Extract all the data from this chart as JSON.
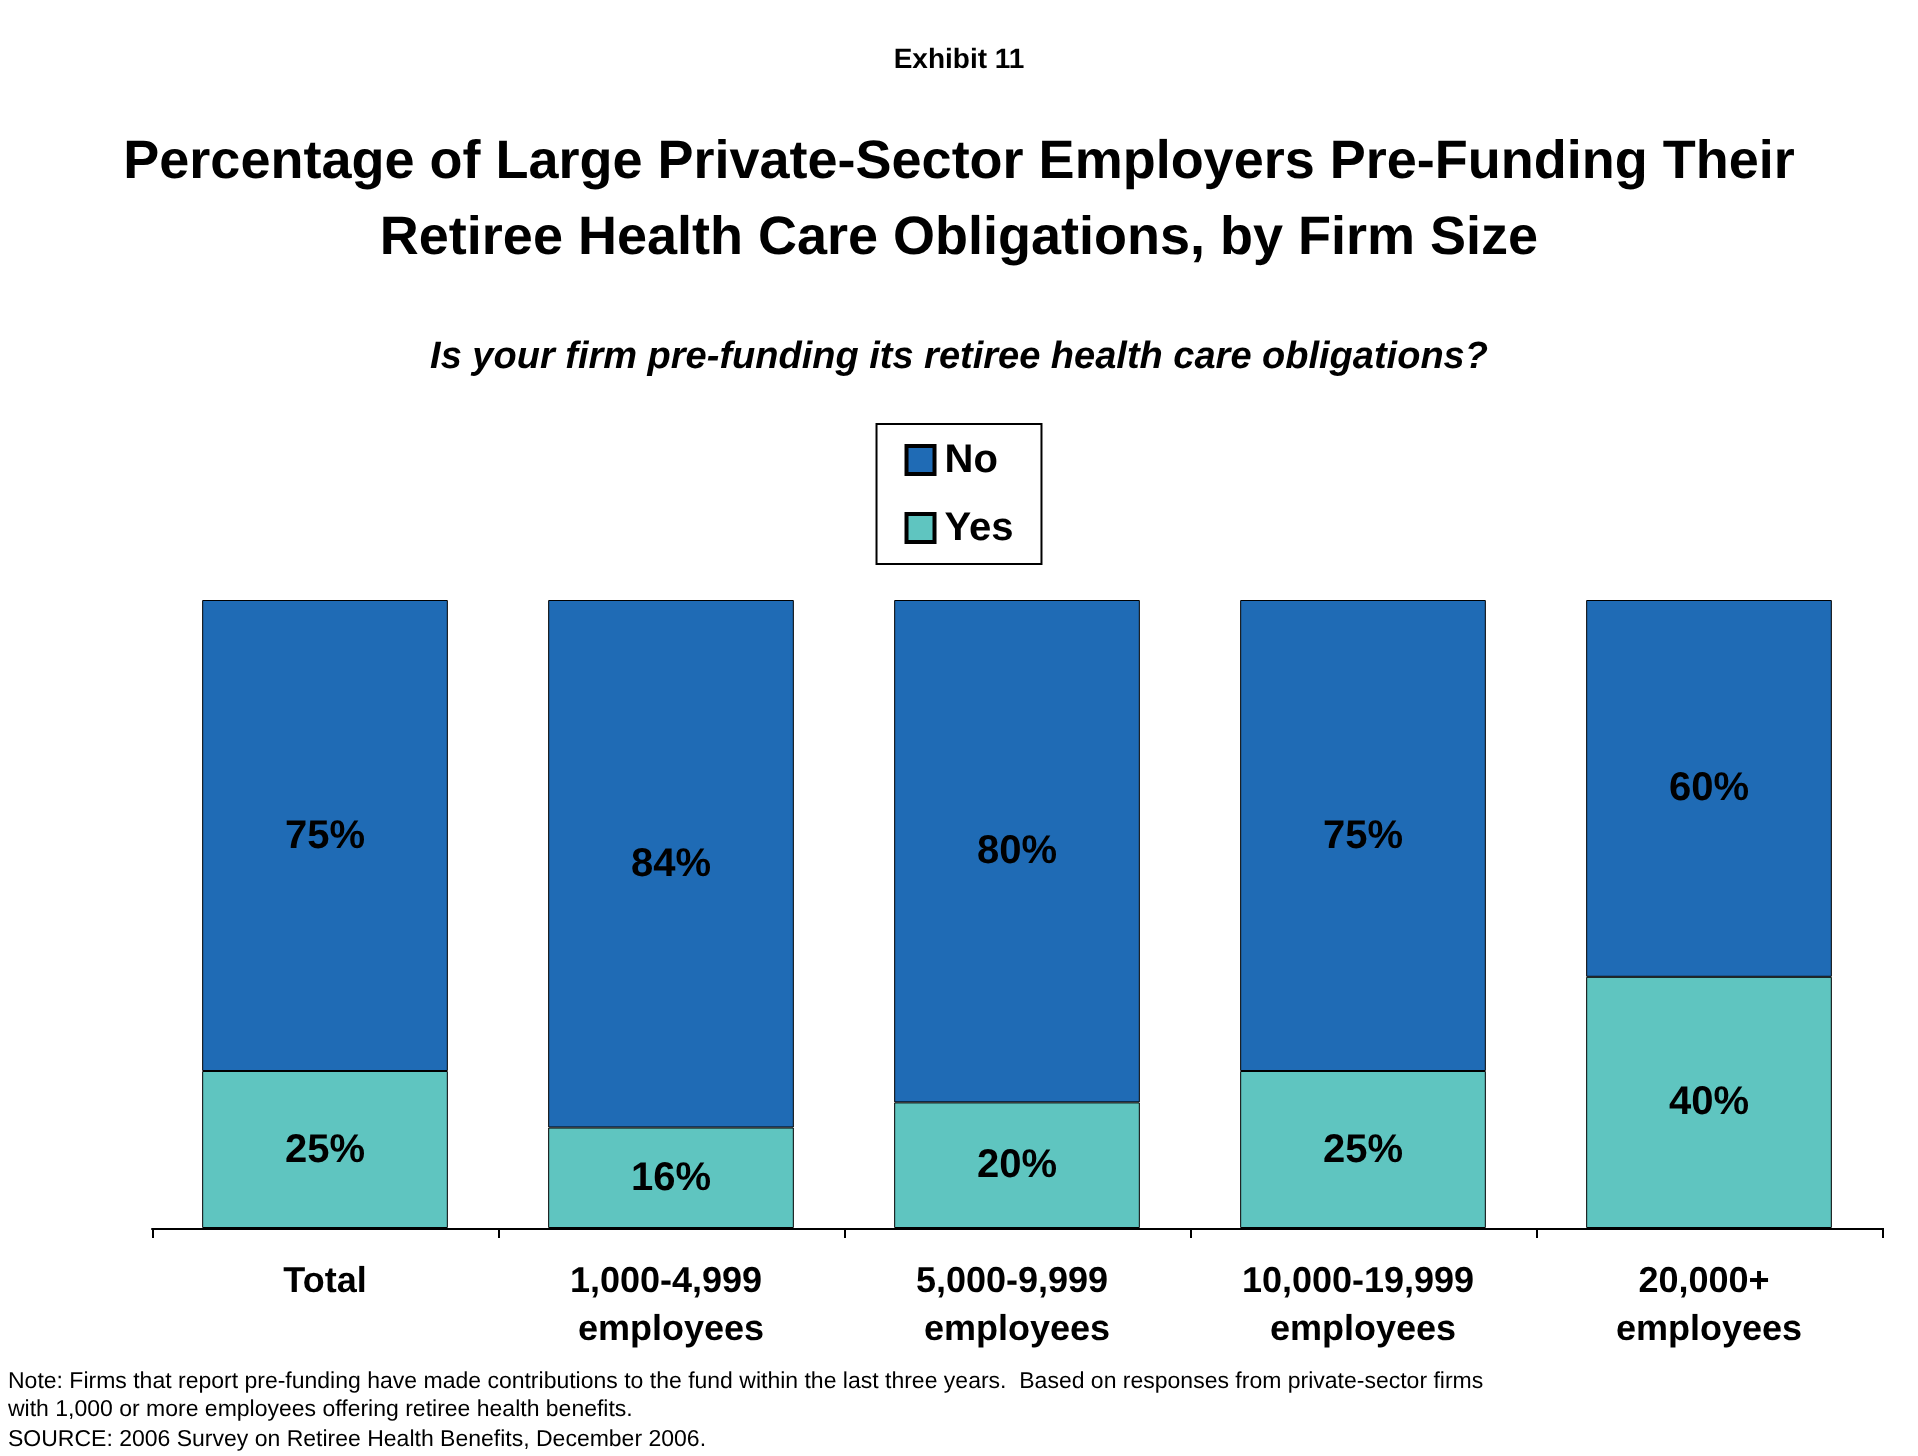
{
  "chart_data": {
    "type": "bar",
    "stacked": true,
    "legend": "top",
    "title": "Percentage of Large Private-Sector Employers Pre-Funding Their\nRetiree Health Care Obligations, by Firm Size",
    "subtitle": "Is your firm pre-funding its retiree health care obligations?",
    "categories": [
      "Total",
      "1,000-4,999 employees",
      "5,000-9,999 employees",
      "10,000-19,999 employees",
      "20,000+ employees"
    ],
    "series": [
      {
        "name": "Yes",
        "color": "#5fc5c0",
        "values": [
          25,
          16,
          20,
          25,
          40
        ],
        "value_labels": [
          "25%",
          "16%",
          "20%",
          "25%",
          "40%"
        ]
      },
      {
        "name": "No",
        "color": "#1f6bb5",
        "values": [
          75,
          84,
          80,
          75,
          60
        ],
        "value_labels": [
          "75%",
          "84%",
          "80%",
          "75%",
          "60%"
        ]
      }
    ],
    "annotations": [
      "Exhibit 11",
      "Note: Firms that report pre-funding have made contributions to the fund within the last three years.  Based on responses from private-sector firms with 1,000 or more employees offering retiree health benefits.",
      "SOURCE: 2006 Survey on Retiree Health Benefits, December 2006."
    ]
  }
}
